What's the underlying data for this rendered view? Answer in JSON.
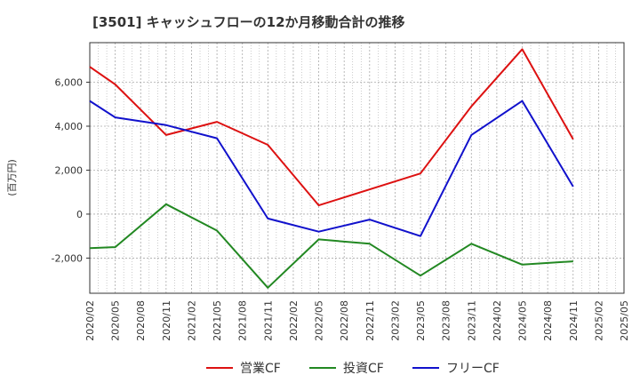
{
  "chart_data": {
    "type": "line",
    "title": "[3501]  キャッシュフローの12か月移動合計の推移",
    "ylabel": "(百万円)",
    "xlabel": "",
    "categories": [
      "2020/02",
      "2020/05",
      "2020/08",
      "2020/11",
      "2021/02",
      "2021/05",
      "2021/08",
      "2021/11",
      "2022/02",
      "2022/05",
      "2022/08",
      "2022/11",
      "2023/02",
      "2023/05",
      "2023/08",
      "2023/11",
      "2024/02",
      "2024/05",
      "2024/08",
      "2024/11",
      "2025/02",
      "2025/05"
    ],
    "ylim": [
      -3600,
      7800
    ],
    "yticks": [
      -2000,
      0,
      2000,
      4000,
      6000
    ],
    "ytick_labels": [
      "-2,000",
      "0",
      "2,000",
      "4,000",
      "6,000"
    ],
    "grid": true,
    "legend_position": "bottom",
    "series": [
      {
        "name": "営業CF",
        "color": "#dd1111",
        "values": [
          6700,
          5900,
          null,
          3600,
          null,
          4200,
          null,
          3150,
          null,
          400,
          null,
          null,
          null,
          1850,
          null,
          4900,
          null,
          7500,
          null,
          3400,
          null,
          null
        ]
      },
      {
        "name": "投資CF",
        "color": "#228822",
        "values": [
          -1550,
          -1500,
          null,
          450,
          null,
          -750,
          null,
          -3350,
          null,
          -1150,
          null,
          -1350,
          null,
          -2800,
          null,
          -1350,
          null,
          -2300,
          null,
          -2150,
          null,
          null
        ]
      },
      {
        "name": "フリーCF",
        "color": "#1111cc",
        "values": [
          5150,
          4400,
          null,
          4050,
          null,
          3450,
          null,
          -200,
          null,
          -800,
          null,
          -250,
          null,
          -1000,
          null,
          3600,
          null,
          5150,
          null,
          1250,
          null,
          null
        ]
      }
    ]
  }
}
